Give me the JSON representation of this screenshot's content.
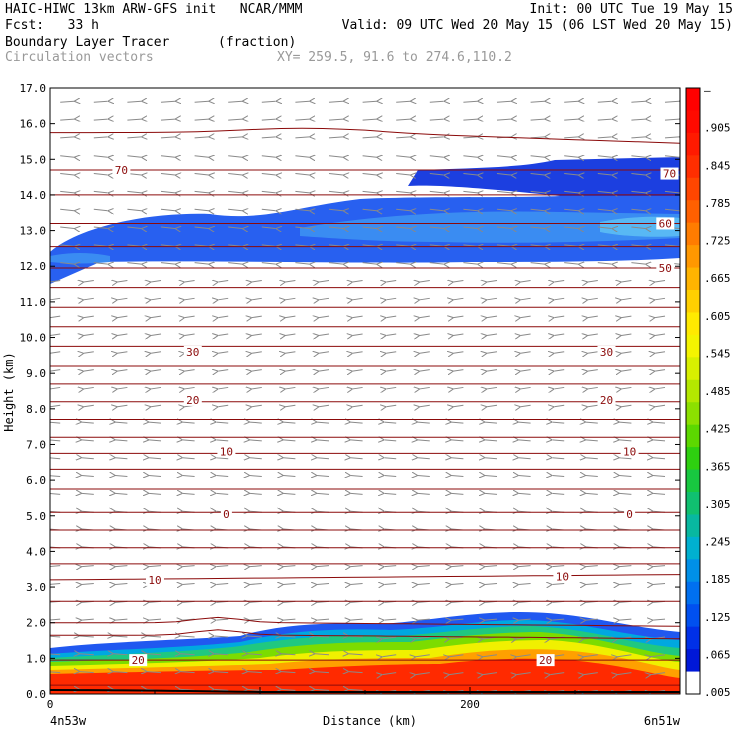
{
  "header": {
    "line1_left": "HAIC-HIWC 13km ARW-GFS init   NCAR/MMM",
    "line1_right": "Init: 00 UTC Tue 19 May 15",
    "line2_left": "Fcst:   33 h",
    "line2_right": "Valid: 09 UTC Wed 20 May 15 (06 LST Wed 20 May 15)",
    "field": "Boundary Layer Tracer",
    "units": "(fraction)",
    "vectors": "Circulation vectors",
    "xy": "XY= 259.5, 91.6 to 274.6,110.2"
  },
  "chart_data": {
    "type": "heatmap",
    "xlabel": "Distance (km)",
    "ylabel": "Height (km)",
    "ylim": [
      0,
      17
    ],
    "xlim": [
      0,
      300
    ],
    "y_ticks": [
      "0.0",
      "1.0",
      "2.0",
      "3.0",
      "4.0",
      "5.0",
      "6.0",
      "7.0",
      "8.0",
      "9.0",
      "10.0",
      "11.0",
      "12.0",
      "13.0",
      "14.0",
      "15.0",
      "16.0",
      "17.0"
    ],
    "x_ticks": [
      {
        "value": 0,
        "label": "0"
      },
      {
        "value": 200,
        "label": "200"
      }
    ],
    "x_end_labels": {
      "left": "4n53w",
      "right": "6n51w"
    },
    "colorbar": {
      "labels": [
        "–",
        ".905",
        ".845",
        ".785",
        ".725",
        ".665",
        ".605",
        ".545",
        ".485",
        ".425",
        ".365",
        ".305",
        ".245",
        ".185",
        ".125",
        ".065",
        ".005"
      ],
      "colors": [
        "#ff0000",
        "#ff0a00",
        "#ff1a00",
        "#ff2e00",
        "#ff4600",
        "#ff6000",
        "#ff7c00",
        "#ff9800",
        "#ffb400",
        "#ffd000",
        "#ffea00",
        "#f4f400",
        "#d8f000",
        "#b4e800",
        "#8ce000",
        "#5cd800",
        "#2ed010",
        "#18c840",
        "#10c070",
        "#08b8a0",
        "#00b0d0",
        "#0090e8",
        "#0070f0",
        "#0050f0",
        "#0030e8",
        "#0018d8",
        "#ffffff"
      ]
    },
    "contour_labels": [
      {
        "text": "70",
        "x": 34,
        "y": 14.7
      },
      {
        "text": "70",
        "x": 295,
        "y": 14.6
      },
      {
        "text": "60",
        "x": 293,
        "y": 13.2
      },
      {
        "text": "50",
        "x": 293,
        "y": 11.95
      },
      {
        "text": "30",
        "x": 68,
        "y": 9.6
      },
      {
        "text": "30",
        "x": 265,
        "y": 9.6
      },
      {
        "text": "20",
        "x": 68,
        "y": 8.25
      },
      {
        "text": "20",
        "x": 265,
        "y": 8.25
      },
      {
        "text": "10",
        "x": 84,
        "y": 6.8
      },
      {
        "text": "10",
        "x": 276,
        "y": 6.8
      },
      {
        "text": "0",
        "x": 84,
        "y": 5.05
      },
      {
        "text": "0",
        "x": 276,
        "y": 5.05
      },
      {
        "text": "10",
        "x": 50,
        "y": 3.2
      },
      {
        "text": "10",
        "x": 244,
        "y": 3.3
      },
      {
        "text": "20",
        "x": 42,
        "y": 0.95
      },
      {
        "text": "20",
        "x": 236,
        "y": 0.95
      }
    ]
  }
}
